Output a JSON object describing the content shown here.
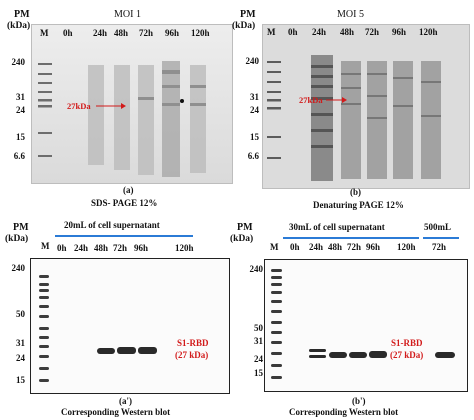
{
  "panel_a": {
    "pm_top": "PM",
    "pm_unit": "(kDa)",
    "title": "MOI 1",
    "lane_marker": "M",
    "lanes": [
      "0h",
      "24h",
      "48h",
      "72h",
      "96h",
      "120h"
    ],
    "mw": [
      "240",
      "31",
      "24",
      "15",
      "6.6"
    ],
    "band_label": "27kDa",
    "letter": "(a)",
    "caption": "SDS- PAGE 12%"
  },
  "panel_b": {
    "pm_top": "PM",
    "pm_unit": "(kDa)",
    "title": "MOI 5",
    "lane_marker": "M",
    "lanes": [
      "0h",
      "24h",
      "48h",
      "72h",
      "96h",
      "120h"
    ],
    "mw": [
      "240",
      "31",
      "24",
      "15",
      "6.6"
    ],
    "band_label": "27kDa",
    "letter": "(b)",
    "caption": "Denaturing PAGE 12%"
  },
  "panel_a2": {
    "pm_top": "PM",
    "pm_unit": "(kDa)",
    "header": "20mL of cell supernatant",
    "lane_marker": "M",
    "lanes": [
      "0h",
      "24h",
      "48h",
      "72h",
      "96h",
      "120h"
    ],
    "mw": [
      "240",
      "50",
      "31",
      "24",
      "15"
    ],
    "band_label": "S1-RBD",
    "band_label_kda": "(27 kDa)",
    "letter": "(a')",
    "caption": "Corresponding Western blot"
  },
  "panel_b2": {
    "pm_top": "PM",
    "pm_unit": "(kDa)",
    "header": "30mL of cell supernatant",
    "header_right": "500mL",
    "lane_marker": "M",
    "lanes": [
      "0h",
      "24h",
      "48h",
      "72h",
      "96h",
      "120h"
    ],
    "lane_right": "72h",
    "mw": [
      "240",
      "50",
      "31",
      "24",
      "15"
    ],
    "band_label": "S1-RBD",
    "band_label_kda": "(27 kDa)",
    "letter": "(b')",
    "caption": "Corresponding Western blot"
  }
}
